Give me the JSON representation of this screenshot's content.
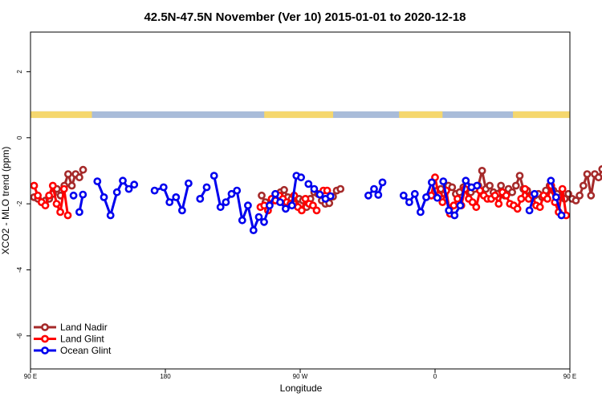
{
  "chart_data": {
    "type": "line",
    "title": "42.5N-47.5N November (Ver 10)   2015-01-01 to 2020-12-18",
    "xlabel": "Longitude",
    "ylabel": "XCO2 - MLO trend (ppm)",
    "xlim": [
      90,
      450
    ],
    "ylim": [
      -7.0,
      3.2
    ],
    "x_ticks": [
      {
        "value": 90,
        "label": "90 E"
      },
      {
        "value": 180,
        "label": "180"
      },
      {
        "value": 270,
        "label": "90 W"
      },
      {
        "value": 360,
        "label": "0"
      },
      {
        "value": 450,
        "label": "90 E"
      },
      {
        "value": 540,
        "label": "180"
      }
    ],
    "y_ticks": [
      {
        "value": 2,
        "label": "2"
      },
      {
        "value": 0,
        "label": "0"
      },
      {
        "value": -2,
        "label": "-2"
      },
      {
        "value": -4,
        "label": "-4"
      },
      {
        "value": -6,
        "label": "-6"
      }
    ],
    "land_ocean_band": {
      "y_range": [
        0.6,
        0.8
      ],
      "land_color": "#f5d76e",
      "ocean_color": "#a9bcd9",
      "land_segments": [
        [
          90,
          131
        ],
        [
          246,
          292
        ],
        [
          336,
          365
        ],
        [
          412,
          457
        ],
        [
          512,
          526
        ]
      ]
    },
    "legend": {
      "position": "bottom-left"
    },
    "series": [
      {
        "name": "Land Nadir",
        "color": "#a52a2a",
        "segments": [
          [
            [
              92.4,
              -1.8
            ],
            [
              95.0,
              -1.85
            ],
            [
              97.5,
              -1.95
            ],
            [
              100.0,
              -1.9
            ],
            [
              102.5,
              -1.85
            ],
            [
              105.0,
              -1.7
            ],
            [
              107.6,
              -1.55
            ],
            [
              110.1,
              -1.75
            ],
            [
              112.6,
              -1.45
            ],
            [
              115.1,
              -1.1
            ],
            [
              117.6,
              -1.45
            ],
            [
              120.1,
              -1.1
            ],
            [
              122.6,
              -1.2
            ],
            [
              125.1,
              -0.97
            ]
          ],
          [
            [
              244.3,
              -1.75
            ],
            [
              246.8,
              -1.95
            ],
            [
              249.3,
              -2.05
            ],
            [
              251.8,
              -1.9
            ],
            [
              254.3,
              -1.8
            ],
            [
              256.8,
              -1.65
            ],
            [
              259.3,
              -1.58
            ],
            [
              261.8,
              -1.8
            ],
            [
              264.3,
              -1.85
            ],
            [
              266.8,
              -2.0
            ],
            [
              269.3,
              -1.85
            ],
            [
              271.8,
              -1.9
            ],
            [
              274.3,
              -2.1
            ],
            [
              276.8,
              -1.85
            ],
            [
              279.4,
              -1.65
            ],
            [
              281.9,
              -1.7
            ],
            [
              284.4,
              -1.9
            ],
            [
              286.9,
              -2.0
            ],
            [
              289.4,
              -1.98
            ],
            [
              291.9,
              -1.78
            ],
            [
              294.4,
              -1.6
            ],
            [
              296.9,
              -1.55
            ]
          ],
          [
            [
              361.4,
              -1.6
            ],
            [
              363.9,
              -1.55
            ],
            [
              366.4,
              -1.7
            ],
            [
              368.9,
              -1.45
            ],
            [
              371.4,
              -1.5
            ],
            [
              373.9,
              -1.7
            ],
            [
              376.4,
              -1.65
            ],
            [
              378.9,
              -1.5
            ],
            [
              381.4,
              -1.45
            ],
            [
              383.9,
              -1.65
            ],
            [
              386.4,
              -1.55
            ],
            [
              388.9,
              -1.45
            ],
            [
              391.4,
              -1.0
            ],
            [
              393.9,
              -1.55
            ],
            [
              396.5,
              -1.45
            ],
            [
              399.0,
              -1.65
            ],
            [
              401.5,
              -1.7
            ],
            [
              404.0,
              -1.45
            ],
            [
              406.5,
              -1.75
            ],
            [
              409.0,
              -1.55
            ],
            [
              411.5,
              -1.65
            ],
            [
              414.0,
              -1.45
            ],
            [
              416.5,
              -1.15
            ],
            [
              419.0,
              -1.55
            ],
            [
              421.5,
              -1.6
            ],
            [
              424.0,
              -1.8
            ],
            [
              426.5,
              -1.75
            ],
            [
              429.0,
              -1.7
            ],
            [
              431.5,
              -1.8
            ],
            [
              434.0,
              -1.6
            ],
            [
              436.5,
              -1.45
            ],
            [
              439.0,
              -1.6
            ],
            [
              441.5,
              -1.7
            ],
            [
              444.0,
              -1.8
            ],
            [
              446.5,
              -1.85
            ],
            [
              449.0,
              -1.7
            ],
            [
              451.5,
              -1.85
            ],
            [
              454.0,
              -1.9
            ],
            [
              456.5,
              -1.75
            ],
            [
              459.0,
              -1.45
            ],
            [
              461.5,
              -1.1
            ],
            [
              464.1,
              -1.75
            ],
            [
              466.6,
              -1.1
            ],
            [
              469.1,
              -1.2
            ],
            [
              471.6,
              -0.95
            ]
          ]
        ]
      },
      {
        "name": "Land Glint",
        "color": "#ff0000",
        "segments": [
          [
            [
              92.4,
              -1.45
            ],
            [
              94.9,
              -1.75
            ],
            [
              97.4,
              -1.95
            ],
            [
              99.9,
              -2.05
            ],
            [
              102.4,
              -1.75
            ],
            [
              104.9,
              -1.45
            ],
            [
              107.4,
              -2.0
            ],
            [
              109.9,
              -2.25
            ],
            [
              112.4,
              -1.55
            ],
            [
              114.9,
              -2.35
            ]
          ],
          [
            [
              243.5,
              -2.1
            ],
            [
              246.0,
              -2.05
            ],
            [
              248.5,
              -2.2
            ],
            [
              251.0,
              -1.85
            ],
            [
              253.5,
              -1.9
            ],
            [
              256.0,
              -1.75
            ],
            [
              258.5,
              -1.85
            ],
            [
              261.0,
              -1.95
            ],
            [
              263.5,
              -2.0
            ],
            [
              266.0,
              -1.75
            ],
            [
              268.5,
              -2.1
            ],
            [
              271.0,
              -2.2
            ],
            [
              273.5,
              -1.85
            ],
            [
              276.0,
              -2.0
            ],
            [
              278.5,
              -2.05
            ],
            [
              281.0,
              -2.2
            ]
          ],
          [
            [
              285.5,
              -1.6
            ],
            [
              288.0,
              -1.6
            ]
          ],
          [
            [
              357.5,
              -1.75
            ],
            [
              360.0,
              -1.2
            ],
            [
              362.5,
              -1.75
            ],
            [
              365.0,
              -1.95
            ],
            [
              367.5,
              -1.6
            ],
            [
              370.0,
              -2.3
            ],
            [
              372.5,
              -2.05
            ],
            [
              375.0,
              -1.85
            ],
            [
              377.5,
              -2.05
            ],
            [
              380.0,
              -1.55
            ],
            [
              382.5,
              -1.85
            ],
            [
              385.0,
              -1.95
            ],
            [
              387.5,
              -2.1
            ],
            [
              390.0,
              -1.6
            ],
            [
              392.5,
              -1.75
            ],
            [
              395.0,
              -1.85
            ],
            [
              397.5,
              -1.85
            ],
            [
              400.0,
              -1.75
            ],
            [
              402.5,
              -2.0
            ],
            [
              405.0,
              -1.65
            ],
            [
              407.5,
              -1.75
            ],
            [
              410.0,
              -2.0
            ],
            [
              412.5,
              -2.05
            ],
            [
              415.0,
              -2.15
            ],
            [
              417.5,
              -1.85
            ],
            [
              420.0,
              -1.55
            ],
            [
              422.5,
              -1.85
            ],
            [
              425.0,
              -1.75
            ],
            [
              427.5,
              -2.05
            ],
            [
              430.0,
              -2.1
            ],
            [
              432.5,
              -1.75
            ],
            [
              435.0,
              -1.85
            ],
            [
              437.5,
              -1.45
            ],
            [
              440.0,
              -1.95
            ],
            [
              442.5,
              -2.25
            ],
            [
              445.0,
              -1.55
            ],
            [
              447.5,
              -2.35
            ]
          ]
        ]
      },
      {
        "name": "Ocean Glint",
        "color": "#0000ee",
        "segments": [
          [
            [
              118.7,
              -1.75
            ]
          ],
          [
            [
              122.6,
              -2.25
            ],
            [
              125.0,
              -1.72
            ]
          ],
          [
            [
              134.6,
              -1.32
            ],
            [
              139.0,
              -1.8
            ],
            [
              143.4,
              -2.35
            ],
            [
              147.7,
              -1.65
            ],
            [
              151.6,
              -1.3
            ],
            [
              155.6,
              -1.55
            ],
            [
              159.2,
              -1.42
            ]
          ],
          [
            [
              172.8,
              -1.6
            ],
            [
              178.8,
              -1.5
            ],
            [
              182.8,
              -1.95
            ],
            [
              187.1,
              -1.8
            ],
            [
              191.2,
              -2.2
            ],
            [
              195.5,
              -1.38
            ]
          ],
          [
            [
              203.2,
              -1.85
            ],
            [
              207.6,
              -1.5
            ]
          ],
          [
            [
              212.5,
              -1.15
            ],
            [
              216.8,
              -2.1
            ],
            [
              220.4,
              -1.95
            ],
            [
              224.2,
              -1.7
            ],
            [
              227.8,
              -1.6
            ],
            [
              231.3,
              -2.5
            ],
            [
              235.1,
              -2.05
            ],
            [
              238.8,
              -2.8
            ],
            [
              242.4,
              -2.4
            ],
            [
              245.9,
              -2.55
            ],
            [
              249.6,
              -2.05
            ],
            [
              253.4,
              -1.7
            ],
            [
              256.6,
              -1.95
            ],
            [
              260.3,
              -2.15
            ],
            [
              264.5,
              -2.05
            ],
            [
              267.5,
              -1.15
            ],
            [
              270.6,
              -1.2
            ]
          ],
          [
            [
              275.5,
              -1.4
            ],
            [
              279.3,
              -1.55
            ],
            [
              283.1,
              -1.72
            ],
            [
              286.9,
              -1.85
            ],
            [
              290.2,
              -1.77
            ]
          ],
          [
            [
              315.5,
              -1.75
            ],
            [
              319.3,
              -1.55
            ],
            [
              322.1,
              -1.73
            ],
            [
              324.9,
              -1.35
            ]
          ],
          [
            [
              339.0,
              -1.75
            ],
            [
              342.8,
              -1.95
            ],
            [
              346.5,
              -1.7
            ],
            [
              350.3,
              -2.25
            ],
            [
              354.1,
              -1.8
            ],
            [
              357.8,
              -1.35
            ],
            [
              361.5,
              -1.82
            ]
          ],
          [
            [
              365.5,
              -1.32
            ],
            [
              369.2,
              -2.2
            ],
            [
              373.0,
              -2.35
            ],
            [
              376.8,
              -2.05
            ],
            [
              380.5,
              -1.3
            ],
            [
              384.3,
              -1.5
            ],
            [
              388.0,
              -1.45
            ]
          ],
          [
            [
              423.0,
              -2.2
            ],
            [
              426.4,
              -1.7
            ]
          ],
          [
            [
              437.3,
              -1.3
            ],
            [
              440.8,
              -1.8
            ],
            [
              444.4,
              -2.35
            ]
          ]
        ]
      }
    ]
  }
}
